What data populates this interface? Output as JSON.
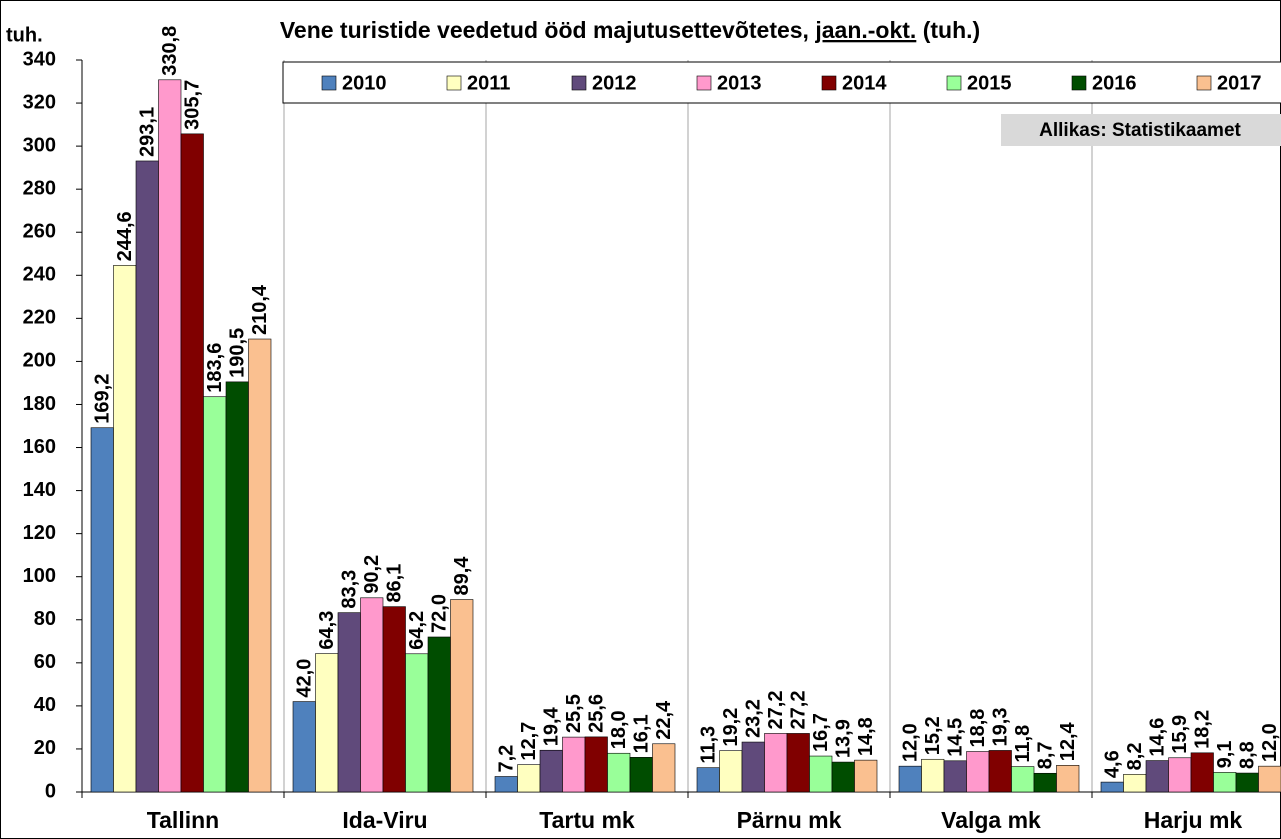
{
  "chart_data": {
    "type": "bar",
    "title": [
      "Vene turistide veedetud ööd majutusettevõtetes, ",
      "jaan.-okt.",
      " (tuh.)"
    ],
    "y_label": "tuh.",
    "source": "Allikas: Statistikaamet",
    "categories": [
      "Tallinn",
      "Ida-Viru",
      "Tartu mk",
      "Pärnu mk",
      "Valga mk",
      "Harju mk"
    ],
    "series": [
      {
        "name": "2010",
        "color": "#4f81bd",
        "values": [
          169.2,
          42.0,
          7.2,
          11.3,
          12.0,
          4.6
        ],
        "value_labels": [
          "169,2",
          "42,0",
          "7,2",
          "11,3",
          "12,0",
          "4,6"
        ]
      },
      {
        "name": "2011",
        "color": "#ffffc0",
        "values": [
          244.6,
          64.3,
          12.7,
          19.2,
          15.2,
          8.2
        ],
        "value_labels": [
          "244,6",
          "64,3",
          "12,7",
          "19,2",
          "15,2",
          "8,2"
        ]
      },
      {
        "name": "2012",
        "color": "#604a7b",
        "values": [
          293.1,
          83.3,
          19.4,
          23.2,
          14.5,
          14.6
        ],
        "value_labels": [
          "293,1",
          "83,3",
          "19,4",
          "23,2",
          "14,5",
          "14,6"
        ]
      },
      {
        "name": "2013",
        "color": "#ff99cc",
        "values": [
          330.8,
          90.2,
          25.5,
          27.2,
          18.8,
          15.9
        ],
        "value_labels": [
          "330,8",
          "90,2",
          "25,5",
          "27,2",
          "18,8",
          "15,9"
        ]
      },
      {
        "name": "2014",
        "color": "#800000",
        "values": [
          305.7,
          86.1,
          25.6,
          27.2,
          19.3,
          18.2
        ],
        "value_labels": [
          "305,7",
          "86,1",
          "25,6",
          "27,2",
          "19,3",
          "18,2"
        ]
      },
      {
        "name": "2015",
        "color": "#99ff99",
        "values": [
          183.6,
          64.2,
          18.0,
          16.7,
          11.8,
          9.1
        ],
        "value_labels": [
          "183,6",
          "64,2",
          "18,0",
          "16,7",
          "11,8",
          "9,1"
        ]
      },
      {
        "name": "2016",
        "color": "#004d00",
        "values": [
          190.5,
          72.0,
          16.1,
          13.9,
          8.7,
          8.8
        ],
        "value_labels": [
          "190,5",
          "72,0",
          "16,1",
          "13,9",
          "8,7",
          "8,8"
        ]
      },
      {
        "name": "2017",
        "color": "#fac090",
        "values": [
          210.4,
          89.4,
          22.4,
          14.8,
          12.4,
          12.0
        ],
        "value_labels": [
          "210,4",
          "89,4",
          "22,4",
          "14,8",
          "12,4",
          "12,0"
        ]
      }
    ],
    "ylim": [
      0,
      340
    ],
    "yticks": [
      0,
      20,
      40,
      60,
      80,
      100,
      120,
      140,
      160,
      180,
      200,
      220,
      240,
      260,
      280,
      300,
      320,
      340
    ],
    "grid": false,
    "legend": "top"
  }
}
